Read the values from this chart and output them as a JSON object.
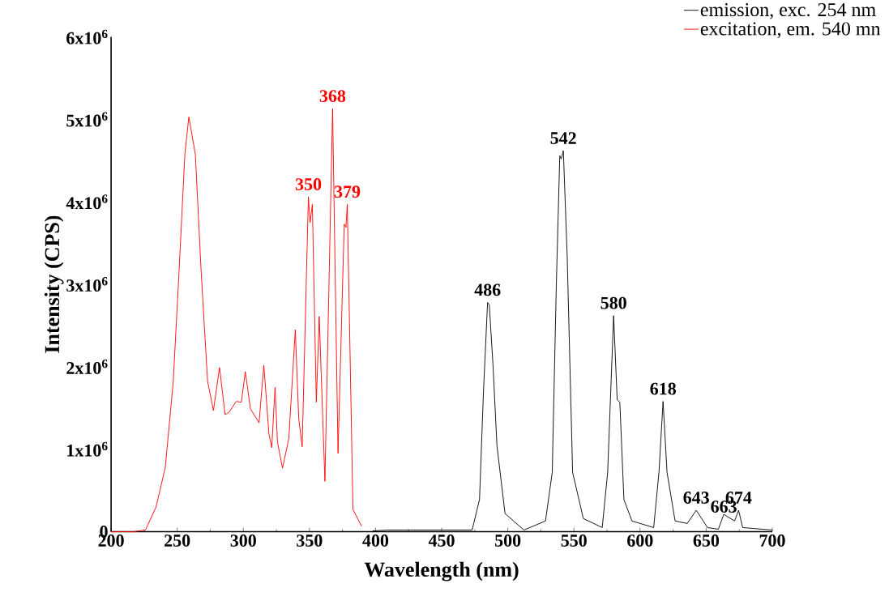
{
  "chart_data": {
    "type": "line",
    "xlabel": "Wavelength (nm)",
    "ylabel": "Intensity (CPS)",
    "xlim": [
      200,
      700
    ],
    "xticks": [
      200,
      250,
      300,
      350,
      400,
      450,
      500,
      550,
      600,
      650,
      700
    ],
    "ylim": [
      0,
      6000000
    ],
    "yticks": [
      0,
      {
        "value": 1000000,
        "label": "1x10$^{6}$"
      },
      {
        "value": 2000000,
        "label": "2x10$^{6}$"
      },
      {
        "value": 3000000,
        "label": "3x10$^{6}$"
      },
      {
        "value": 4000000,
        "label": "4x10$^{6}$"
      },
      {
        "value": 5000000,
        "label": "5x10$^{6}$"
      },
      {
        "value": 6000000,
        "label": "6x10$^{6}$"
      }
    ],
    "grid": false,
    "legend": "top right",
    "line_style": "solid",
    "marker": "none",
    "series": [
      {
        "name": "emission, exc. 254 nm",
        "color": "#000000",
        "x": [
          398,
          410,
          473,
          478.6,
          481.6,
          484.7,
          486,
          488.8,
          491.8,
          497.9,
          512.2,
          528.5,
          533.6,
          536.7,
          539.3,
          540.4,
          542,
          544.9,
          549,
          557.1,
          571.4,
          575.5,
          580,
          582.7,
          584.7,
          587.8,
          593.9,
          610.3,
          614.3,
          617.4,
          620.4,
          626.5,
          635.7,
          642.5,
          651,
          659.2,
          663.3,
          671.5,
          674.5,
          677.6,
          700
        ],
        "values": [
          10000,
          20000,
          20000,
          390000,
          1700000,
          2780000,
          2750000,
          2020000,
          1040000,
          220000,
          20000,
          130000,
          720000,
          3010000,
          4560000,
          4520000,
          4620000,
          3340000,
          720000,
          160000,
          50000,
          720000,
          2620000,
          1600000,
          1570000,
          390000,
          130000,
          50000,
          720000,
          1580000,
          720000,
          130000,
          100000,
          260000,
          50000,
          30000,
          210000,
          130000,
          260000,
          50000,
          20000
        ]
      },
      {
        "name": "excitation, em. 540 mn",
        "color": "#ff0000",
        "x": [
          200,
          217,
          226,
          234,
          241,
          247,
          251.5,
          255.8,
          258.8,
          263.7,
          268,
          270.5,
          273,
          277.4,
          282,
          286.2,
          289.3,
          294.6,
          298.5,
          301.5,
          305.4,
          311.9,
          315.5,
          319.4,
          321.5,
          324,
          325.8,
          329.6,
          334.4,
          339.3,
          341.9,
          344.5,
          349.2,
          350.5,
          352.2,
          355.2,
          357.4,
          361.7,
          367.5,
          371.6,
          376.3,
          377.6,
          378.6,
          382.9,
          389.3
        ],
        "values": [
          0,
          0,
          20000,
          300000,
          780000,
          1820000,
          3190000,
          4580000,
          5030000,
          4580000,
          3190000,
          2500000,
          1820000,
          1470000,
          1990000,
          1420000,
          1450000,
          1580000,
          1570000,
          1940000,
          1490000,
          1320000,
          2020000,
          1180000,
          1020000,
          1750000,
          1090000,
          770000,
          1130000,
          2450000,
          1370000,
          1030000,
          4060000,
          3750000,
          3970000,
          1570000,
          2610000,
          610000,
          5130000,
          950000,
          3730000,
          3690000,
          3970000,
          270000,
          70000
        ]
      }
    ],
    "annotations": [
      {
        "text": "350",
        "x": 349.2,
        "y": 4060000
      },
      {
        "text": "368",
        "x": 367.5,
        "y": 5130000
      },
      {
        "text": "379",
        "x": 378.6,
        "y": 3970000
      },
      {
        "text": "486",
        "x": 484.7,
        "y": 2780000
      },
      {
        "text": "542",
        "x": 542,
        "y": 4620000
      },
      {
        "text": "580",
        "x": 580,
        "y": 2620000
      },
      {
        "text": "618",
        "x": 617.4,
        "y": 1580000
      },
      {
        "text": "643",
        "x": 642.5,
        "y": 260000
      },
      {
        "text": "663",
        "x": 663.3,
        "y": 210000
      },
      {
        "text": "674",
        "x": 674.5,
        "y": 260000
      }
    ]
  }
}
